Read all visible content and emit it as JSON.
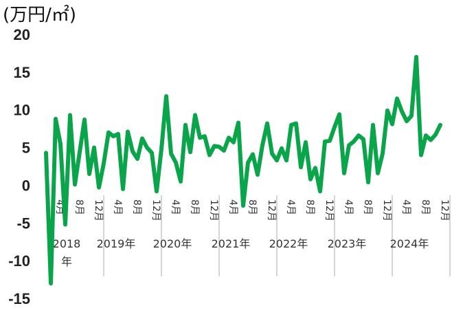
{
  "chart_data": {
    "type": "line",
    "unit_label": "(万円/㎡)",
    "ylim": [
      -15,
      20
    ],
    "yticks": [
      "20",
      "15",
      "10",
      "5",
      "0",
      "-5",
      "-10",
      "-15"
    ],
    "ytick_values": [
      20,
      15,
      10,
      5,
      0,
      -5,
      -10,
      -15
    ],
    "line_color": "#0aa44a",
    "grid": false,
    "x_start": "2018-01",
    "month_ticks": [
      {
        "month": "2018-04",
        "label": "4月"
      },
      {
        "month": "2018-08",
        "label": "8月"
      },
      {
        "month": "2018-12",
        "label": "12月"
      },
      {
        "month": "2019-04",
        "label": "4月"
      },
      {
        "month": "2019-08",
        "label": "8月"
      },
      {
        "month": "2019-12",
        "label": "12月"
      },
      {
        "month": "2020-04",
        "label": "4月"
      },
      {
        "month": "2020-08",
        "label": "8月"
      },
      {
        "month": "2020-12",
        "label": "12月"
      },
      {
        "month": "2021-04",
        "label": "4月"
      },
      {
        "month": "2021-08",
        "label": "8月"
      },
      {
        "month": "2021-12",
        "label": "12月"
      },
      {
        "month": "2022-04",
        "label": "4月"
      },
      {
        "month": "2022-08",
        "label": "8月"
      },
      {
        "month": "2022-12",
        "label": "12月"
      },
      {
        "month": "2023-04",
        "label": "4月"
      },
      {
        "month": "2023-08",
        "label": "8月"
      },
      {
        "month": "2023-12",
        "label": "12月"
      },
      {
        "month": "2024-04",
        "label": "4月"
      },
      {
        "month": "2024-08",
        "label": "8月"
      },
      {
        "month": "2024-12",
        "label": "12月"
      }
    ],
    "year_labels": [
      {
        "label": "2018",
        "label2": "年"
      },
      {
        "label": "2019年"
      },
      {
        "label": "2020年"
      },
      {
        "label": "2021年"
      },
      {
        "label": "2022年"
      },
      {
        "label": "2023年"
      },
      {
        "label": "2024年"
      }
    ],
    "values": [
      4.3,
      -13.0,
      8.8,
      5.5,
      -5.2,
      9.3,
      0.1,
      4.4,
      8.7,
      1.5,
      5.0,
      -0.3,
      2.9,
      7.0,
      6.5,
      6.8,
      -0.5,
      7.1,
      4.5,
      3.5,
      6.2,
      5.0,
      4.3,
      -0.8,
      4.8,
      11.8,
      4.2,
      3.0,
      0.5,
      8.0,
      4.4,
      9.3,
      6.3,
      6.5,
      4.0,
      5.2,
      5.1,
      4.6,
      6.3,
      5.7,
      8.3,
      -2.7,
      3.0,
      4.1,
      1.4,
      5.3,
      8.2,
      4.2,
      3.3,
      4.9,
      3.3,
      8.0,
      8.2,
      2.4,
      5.7,
      0.8,
      2.3,
      -0.8,
      5.8,
      5.9,
      7.7,
      9.4,
      1.6,
      5.3,
      5.8,
      6.6,
      6.1,
      0.4,
      8.0,
      1.6,
      4.2,
      9.9,
      8.1,
      11.5,
      9.8,
      8.5,
      9.2,
      17.0,
      4.0,
      6.6,
      6.0,
      6.7,
      8.0
    ]
  }
}
